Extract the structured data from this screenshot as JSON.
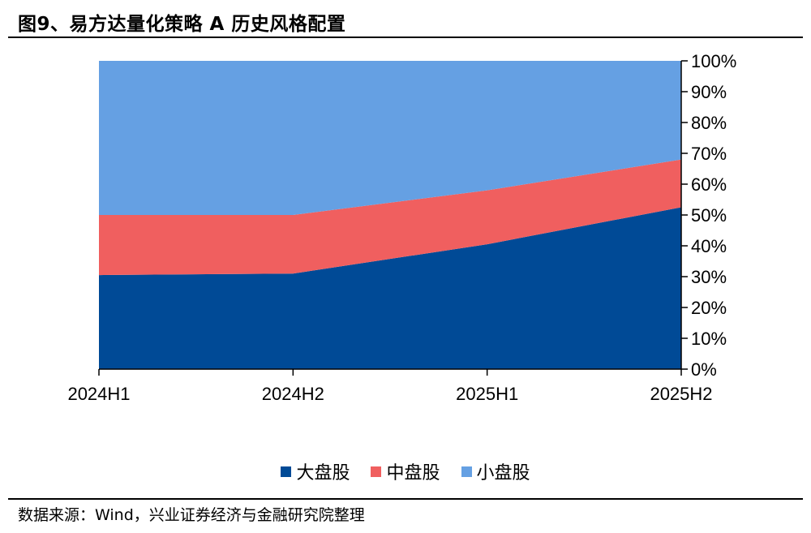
{
  "title": "图9、易方达量化策略 A 历史风格配置",
  "source": "数据来源：Wind，兴业证券经济与金融研究院整理",
  "chart_data": {
    "type": "area",
    "stacked": true,
    "categories": [
      "2024H1",
      "2024H2",
      "2025H1",
      "2025H2"
    ],
    "series": [
      {
        "name": "大盘股",
        "color": "#004a96",
        "values": [
          30.5,
          31,
          40.5,
          52.5
        ]
      },
      {
        "name": "中盘股",
        "color": "#f05f5f",
        "values": [
          19.5,
          19,
          17.5,
          15.5
        ]
      },
      {
        "name": "小盘股",
        "color": "#65a0e3",
        "values": [
          50,
          50,
          42,
          32
        ]
      }
    ],
    "yticks": [
      "0%",
      "10%",
      "20%",
      "30%",
      "40%",
      "50%",
      "60%",
      "70%",
      "80%",
      "90%",
      "100%"
    ],
    "ylim": [
      0,
      100
    ],
    "y_axis_side": "right",
    "legend_position": "bottom",
    "grid": false
  }
}
